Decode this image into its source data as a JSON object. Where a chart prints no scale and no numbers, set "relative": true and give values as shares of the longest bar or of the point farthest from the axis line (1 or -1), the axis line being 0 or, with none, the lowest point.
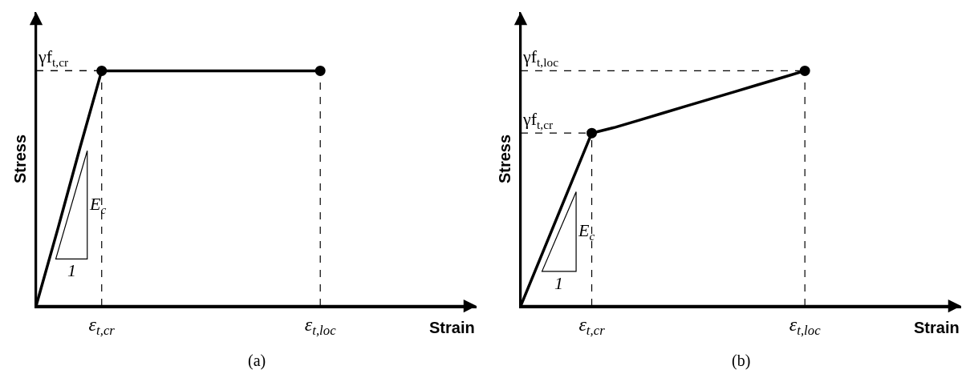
{
  "chart_data": [
    {
      "type": "line",
      "title": "(a)",
      "xlabel": "Strain",
      "ylabel": "Stress",
      "relative": true,
      "categories": [
        null,
        null,
        null,
        "ε$_{t,cr}$",
        null,
        null,
        null,
        null,
        null,
        null,
        null,
        null,
        null,
        "ε$_{t,loc}$"
      ],
      "series": [
        {
          "color": "#000000",
          "line_style": "solid",
          "values": [
            0,
            0.33,
            0.67,
            1,
            1,
            1,
            1,
            1,
            1,
            1,
            1,
            1,
            1,
            1
          ]
        },
        {
          "type": "scatter",
          "color": "#000000",
          "marker": "circle",
          "values": [
            null,
            null,
            null,
            1,
            null,
            null,
            null,
            null,
            null,
            null,
            null,
            null,
            null,
            1
          ]
        }
      ],
      "annotations": [
        "γf$_{t,cr}$",
        "E$_{c}$",
        "1"
      ]
    },
    {
      "type": "line",
      "title": "(b)",
      "xlabel": "Strain",
      "ylabel": "Stress",
      "relative": true,
      "categories": [
        null,
        null,
        null,
        "ε$_{t,cr}$",
        null,
        null,
        null,
        null,
        null,
        null,
        null,
        null,
        "ε$_{t,loc}$"
      ],
      "series": [
        {
          "color": "#000000",
          "line_style": "solid",
          "values": [
            0,
            0.245,
            0.49,
            0.735,
            0.76,
            0.79,
            0.82,
            0.85,
            0.88,
            0.91,
            0.94,
            0.97,
            1
          ]
        },
        {
          "type": "scatter",
          "color": "#000000",
          "marker": "circle",
          "values": [
            null,
            null,
            null,
            0.735,
            null,
            null,
            null,
            null,
            null,
            null,
            null,
            null,
            1
          ]
        }
      ],
      "annotations": [
        "γf$_{t,cr}$",
        "γf$_{t,loc}$",
        "E$_{c}$",
        "1"
      ]
    }
  ]
}
